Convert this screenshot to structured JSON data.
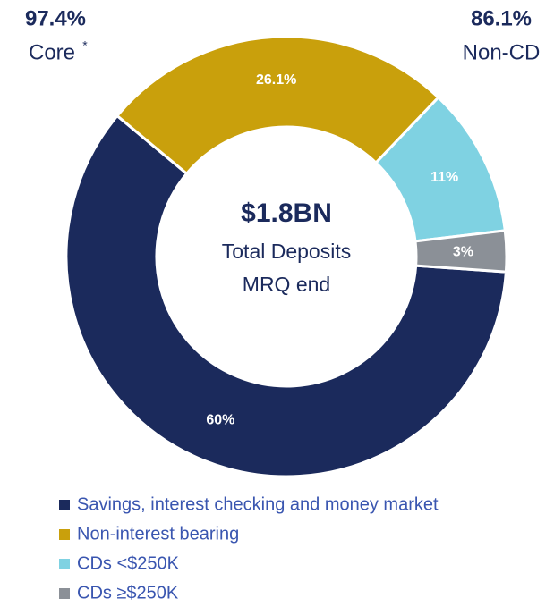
{
  "chart_data": {
    "type": "donut",
    "categories": [
      "Savings, interest checking and money market",
      "Non-interest bearing",
      "CDs <$250K",
      "CDs ≥$250K"
    ],
    "values": [
      60,
      26.1,
      11,
      3
    ],
    "value_labels": [
      "60%",
      "26.1%",
      "11%",
      "3%"
    ],
    "colors": [
      "#1b2a5c",
      "#c9a00c",
      "#7fd2e2",
      "#8b9097"
    ],
    "center_value": "$1.8BN",
    "center_labels": [
      "Total Deposits",
      "MRQ end"
    ],
    "core_stat": {
      "value": "97.4%",
      "label": "Core",
      "mark": "*"
    },
    "non_cd_stat": {
      "value": "86.1%",
      "label": "Non-CD"
    },
    "legend": "bottom-left"
  }
}
